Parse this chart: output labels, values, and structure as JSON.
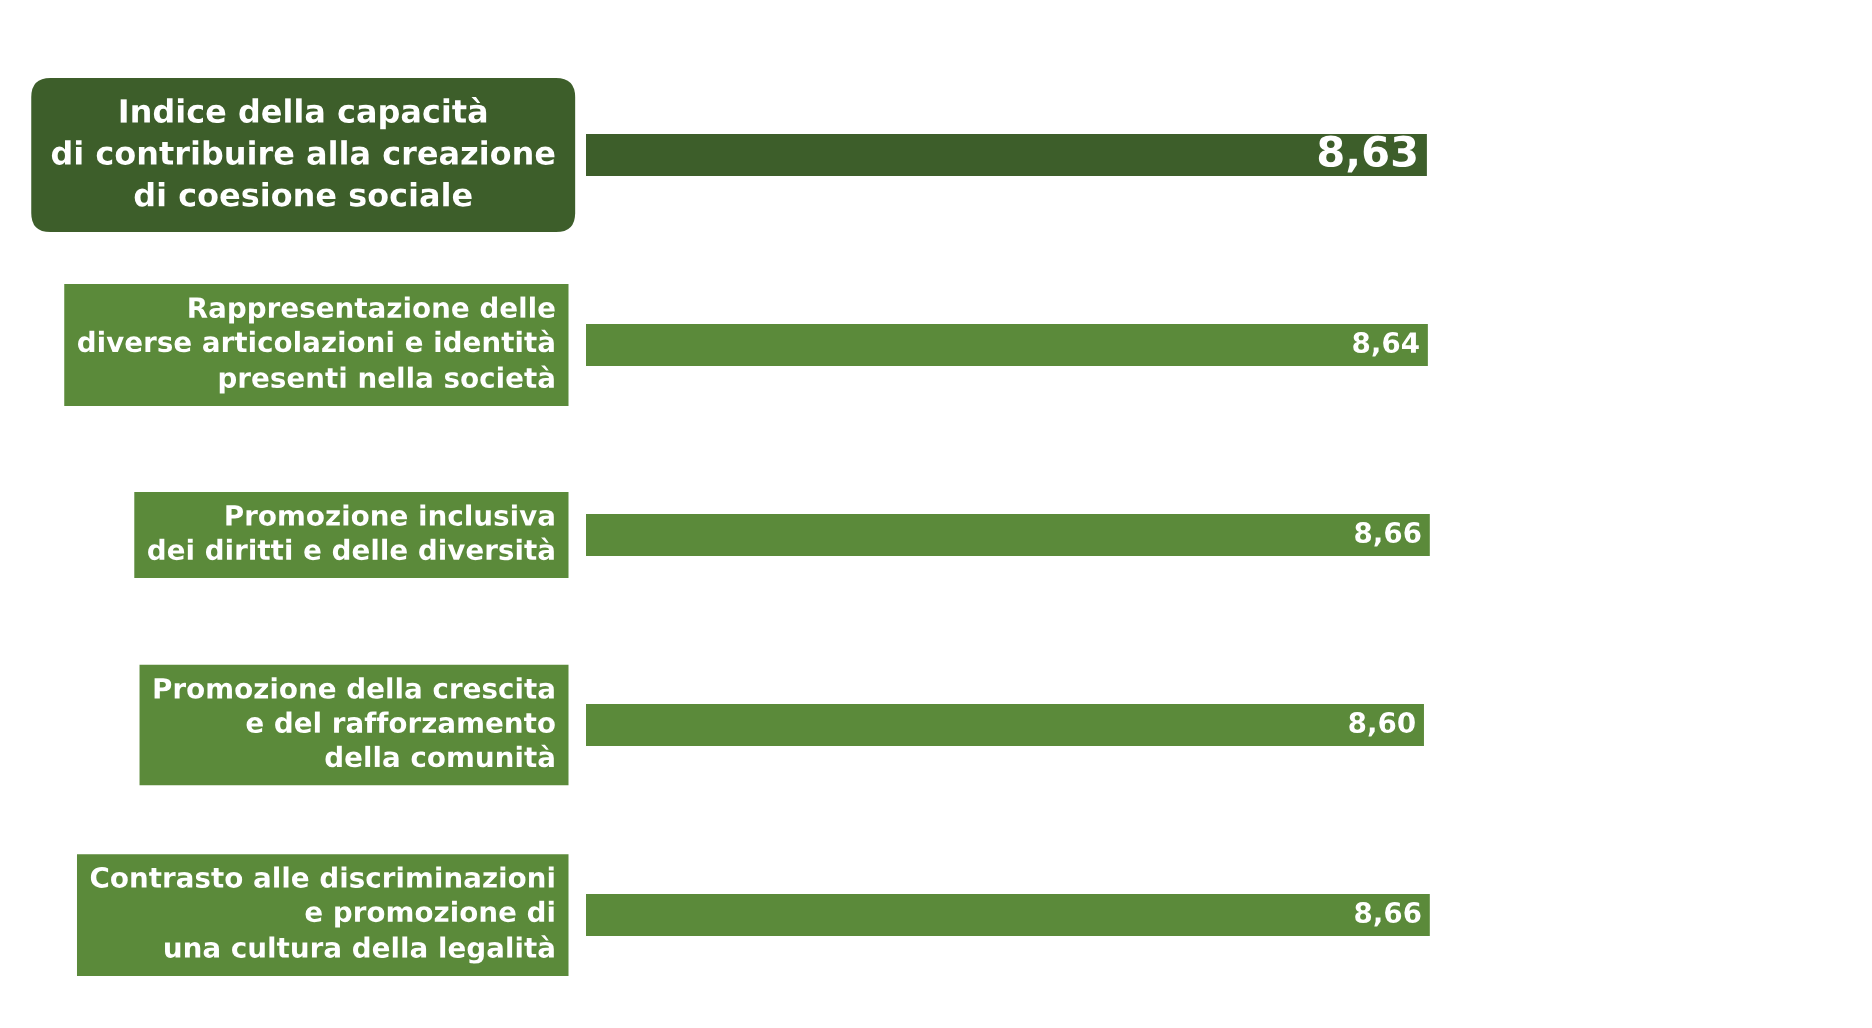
{
  "chart_data": {
    "type": "bar",
    "orientation": "horizontal",
    "categories": [
      "Indice della capacità\ndi contribuire alla creazione\ndi coesione sociale",
      "Rappresentazione delle\ndiverse articolazioni e identità\npresenti nella società",
      "Promozione inclusiva\ndei diritti e delle diversità",
      "Promozione della crescita\ne del rafforzamento\ndella comunità",
      "Contrasto alle discriminazioni\ne promozione di\nuna cultura della legalità"
    ],
    "values": [
      8.63,
      8.64,
      8.66,
      8.6,
      8.66
    ],
    "colors": [
      "#3d5e2a",
      "#5b8a3a",
      "#5b8a3a",
      "#5b8a3a",
      "#5b8a3a"
    ],
    "value_labels": [
      "8,63",
      "8,64",
      "8,66",
      "8,60",
      "8,66"
    ]
  }
}
